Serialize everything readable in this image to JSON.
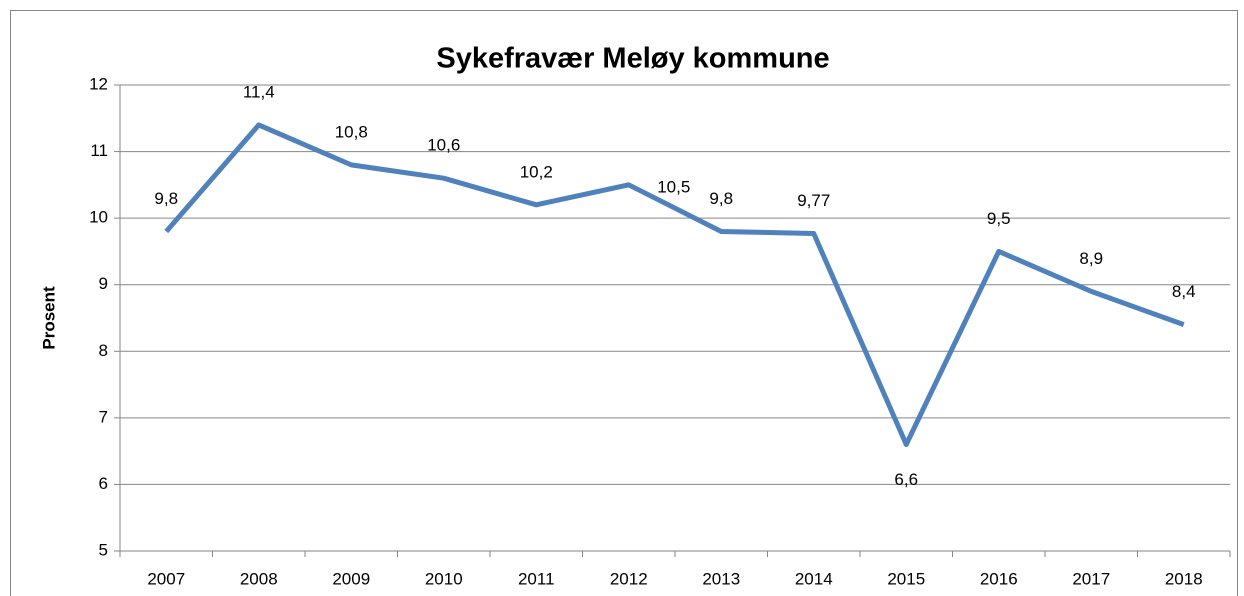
{
  "chart_data": {
    "type": "line",
    "title": "Sykefravær Meløy kommune",
    "y_label": "Prosent",
    "categories": [
      "2007",
      "2008",
      "2009",
      "2010",
      "2011",
      "2012",
      "2013",
      "2014",
      "2015",
      "2016",
      "2017",
      "2018"
    ],
    "values": [
      9.8,
      11.4,
      10.8,
      10.6,
      10.2,
      10.5,
      9.8,
      9.77,
      6.6,
      9.5,
      8.9,
      8.4
    ],
    "value_labels": [
      "9,8",
      "11,4",
      "10,8",
      "10,6",
      "10,2",
      "10,5",
      "9,8",
      "9,77",
      "6,6",
      "9,5",
      "8,9",
      "8,4"
    ],
    "color": "#4f81bd",
    "ylim": [
      5,
      12
    ],
    "yticks": [
      5,
      6,
      7,
      8,
      9,
      10,
      11,
      12
    ],
    "grid": true
  }
}
